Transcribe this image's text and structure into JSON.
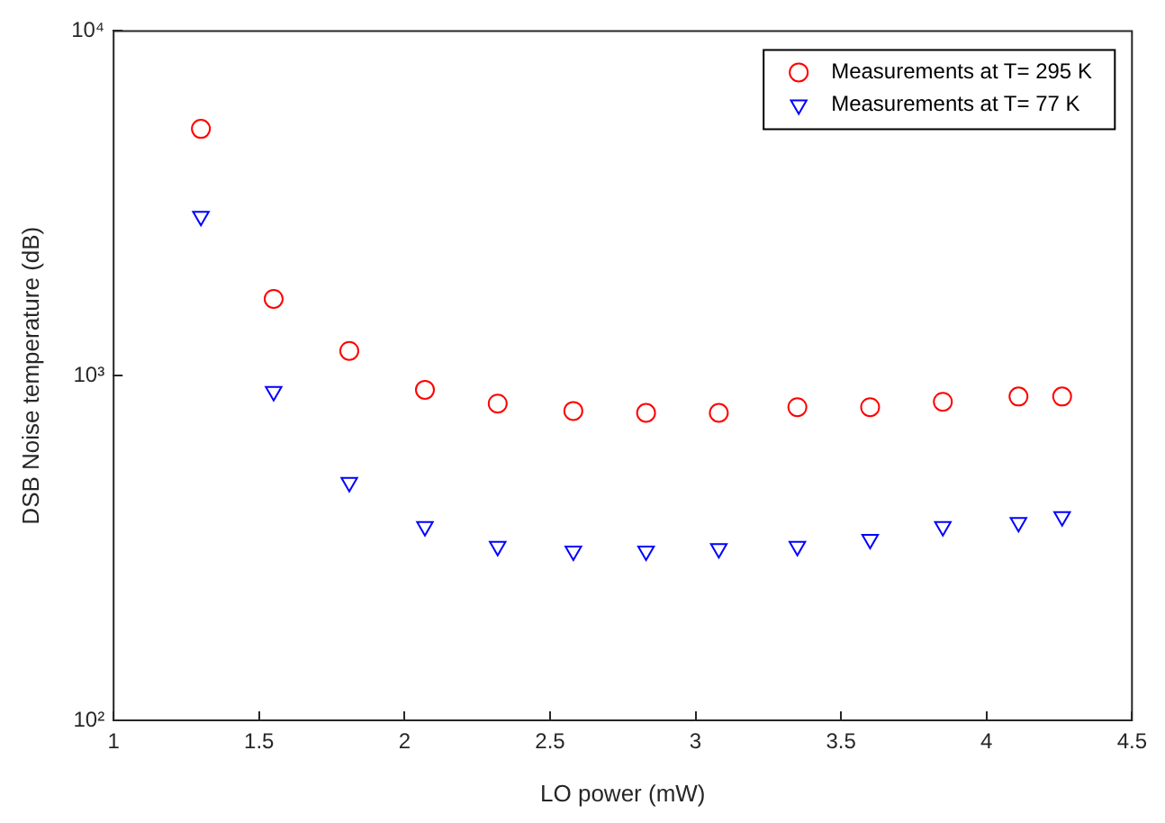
{
  "chart_data": {
    "type": "scatter",
    "xlabel": "LO power (mW)",
    "ylabel": "DSB Noise temperature (dB)",
    "log": "y",
    "xlim": [
      1,
      4.5
    ],
    "xticks": [
      1,
      1.5,
      2,
      2.5,
      3,
      3.5,
      4,
      4.5
    ],
    "ylim": [
      100,
      10000
    ],
    "yticks": [
      {
        "value": 100,
        "label": "10²"
      },
      {
        "value": 1000,
        "label": "10³"
      },
      {
        "value": 10000,
        "label": "10⁴"
      }
    ],
    "grid": false,
    "legend": "top right",
    "x": [
      1.3,
      1.55,
      1.81,
      2.07,
      2.32,
      2.58,
      2.83,
      3.08,
      3.35,
      3.6,
      3.85,
      4.11,
      4.26
    ],
    "series": [
      {
        "name": "Measurements at T= 295 K",
        "color": "#ff0000",
        "marker": "circle",
        "values": [
          5200,
          1670,
          1180,
          910,
          830,
          790,
          780,
          780,
          810,
          810,
          840,
          870,
          870
        ]
      },
      {
        "name": "Measurements at T= 77 K",
        "color": "#0000ff",
        "marker": "triangle",
        "values": [
          2900,
          900,
          490,
          365,
          320,
          310,
          310,
          315,
          320,
          335,
          365,
          375,
          390
        ]
      }
    ]
  }
}
